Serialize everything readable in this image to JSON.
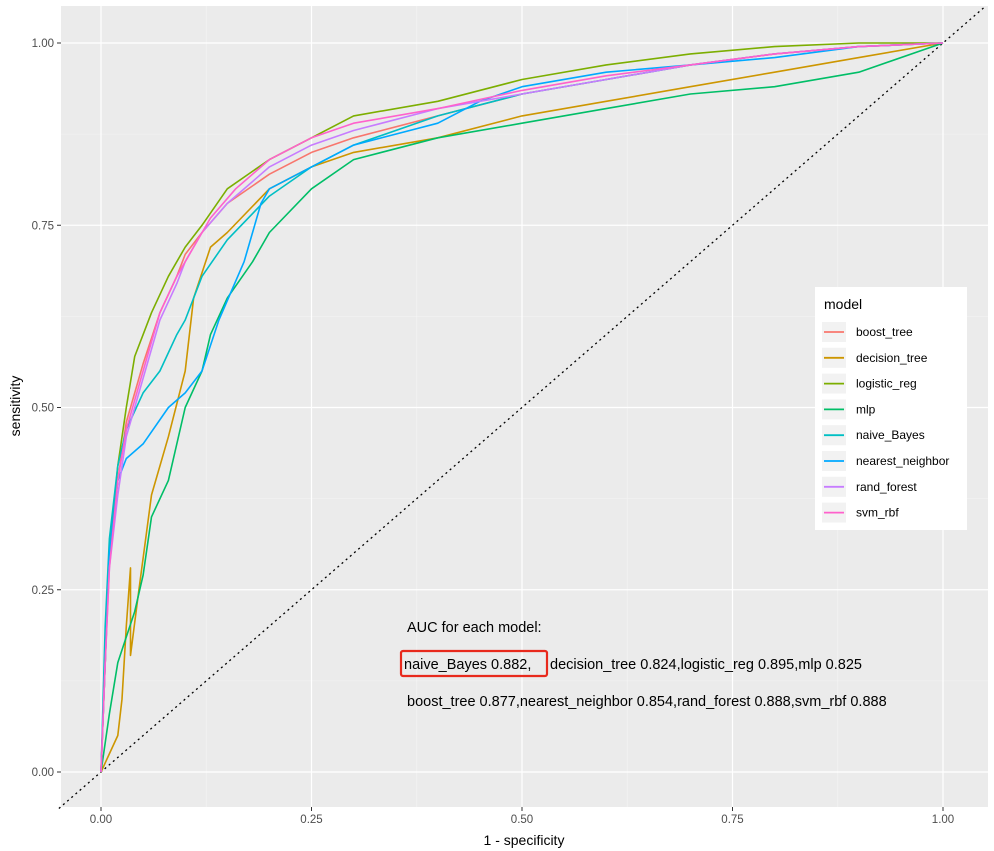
{
  "chart_data": {
    "type": "line",
    "xlabel": "1 - specificity",
    "ylabel": "sensitivity",
    "xlim": [
      -0.05,
      1.05
    ],
    "ylim": [
      -0.05,
      1.05
    ],
    "x_ticks": [
      "0.00",
      "0.25",
      "0.50",
      "0.75",
      "1.00"
    ],
    "y_ticks": [
      "0.00",
      "0.25",
      "0.50",
      "0.75",
      "1.00"
    ],
    "grid": true,
    "reference_line": {
      "from": [
        0,
        0
      ],
      "to": [
        1,
        1
      ],
      "style": "dotted"
    },
    "legend": {
      "title": "model",
      "placement": "right"
    },
    "series": [
      {
        "name": "boost_tree",
        "color": "#F8766D",
        "points": [
          [
            0,
            0
          ],
          [
            0.005,
            0.15
          ],
          [
            0.01,
            0.3
          ],
          [
            0.02,
            0.4
          ],
          [
            0.03,
            0.48
          ],
          [
            0.05,
            0.56
          ],
          [
            0.07,
            0.63
          ],
          [
            0.09,
            0.68
          ],
          [
            0.1,
            0.71
          ],
          [
            0.12,
            0.74
          ],
          [
            0.15,
            0.78
          ],
          [
            0.2,
            0.82
          ],
          [
            0.25,
            0.85
          ],
          [
            0.3,
            0.87
          ],
          [
            0.4,
            0.9
          ],
          [
            0.5,
            0.93
          ],
          [
            0.6,
            0.95
          ],
          [
            0.7,
            0.97
          ],
          [
            0.8,
            0.985
          ],
          [
            0.9,
            0.995
          ],
          [
            1,
            1
          ]
        ]
      },
      {
        "name": "decision_tree",
        "color": "#CD9600",
        "points": [
          [
            0,
            0
          ],
          [
            0.02,
            0.05
          ],
          [
            0.025,
            0.1
          ],
          [
            0.03,
            0.2
          ],
          [
            0.035,
            0.28
          ],
          [
            0.035,
            0.16
          ],
          [
            0.045,
            0.25
          ],
          [
            0.06,
            0.38
          ],
          [
            0.08,
            0.46
          ],
          [
            0.1,
            0.55
          ],
          [
            0.11,
            0.65
          ],
          [
            0.13,
            0.72
          ],
          [
            0.15,
            0.74
          ],
          [
            0.2,
            0.8
          ],
          [
            0.25,
            0.83
          ],
          [
            0.3,
            0.85
          ],
          [
            0.4,
            0.87
          ],
          [
            0.5,
            0.9
          ],
          [
            0.6,
            0.92
          ],
          [
            0.7,
            0.94
          ],
          [
            0.8,
            0.96
          ],
          [
            0.9,
            0.98
          ],
          [
            1,
            1
          ]
        ]
      },
      {
        "name": "logistic_reg",
        "color": "#7CAE00",
        "points": [
          [
            0,
            0
          ],
          [
            0.005,
            0.15
          ],
          [
            0.01,
            0.3
          ],
          [
            0.02,
            0.42
          ],
          [
            0.03,
            0.5
          ],
          [
            0.04,
            0.57
          ],
          [
            0.06,
            0.63
          ],
          [
            0.08,
            0.68
          ],
          [
            0.1,
            0.72
          ],
          [
            0.12,
            0.75
          ],
          [
            0.15,
            0.8
          ],
          [
            0.2,
            0.84
          ],
          [
            0.25,
            0.87
          ],
          [
            0.3,
            0.9
          ],
          [
            0.4,
            0.92
          ],
          [
            0.5,
            0.95
          ],
          [
            0.6,
            0.97
          ],
          [
            0.7,
            0.985
          ],
          [
            0.8,
            0.995
          ],
          [
            0.9,
            1
          ],
          [
            1,
            1
          ]
        ]
      },
      {
        "name": "mlp",
        "color": "#00BE67",
        "points": [
          [
            0,
            0
          ],
          [
            0.01,
            0.08
          ],
          [
            0.02,
            0.15
          ],
          [
            0.04,
            0.22
          ],
          [
            0.05,
            0.27
          ],
          [
            0.06,
            0.35
          ],
          [
            0.08,
            0.4
          ],
          [
            0.1,
            0.5
          ],
          [
            0.12,
            0.55
          ],
          [
            0.13,
            0.6
          ],
          [
            0.15,
            0.65
          ],
          [
            0.18,
            0.7
          ],
          [
            0.2,
            0.74
          ],
          [
            0.25,
            0.8
          ],
          [
            0.3,
            0.84
          ],
          [
            0.4,
            0.87
          ],
          [
            0.5,
            0.89
          ],
          [
            0.6,
            0.91
          ],
          [
            0.7,
            0.93
          ],
          [
            0.8,
            0.94
          ],
          [
            0.9,
            0.96
          ],
          [
            1,
            1
          ]
        ]
      },
      {
        "name": "naive_Bayes",
        "color": "#00BFC4",
        "points": [
          [
            0,
            0
          ],
          [
            0.005,
            0.2
          ],
          [
            0.01,
            0.32
          ],
          [
            0.02,
            0.42
          ],
          [
            0.03,
            0.47
          ],
          [
            0.05,
            0.52
          ],
          [
            0.07,
            0.55
          ],
          [
            0.09,
            0.6
          ],
          [
            0.1,
            0.62
          ],
          [
            0.12,
            0.68
          ],
          [
            0.15,
            0.73
          ],
          [
            0.2,
            0.79
          ],
          [
            0.25,
            0.83
          ],
          [
            0.3,
            0.86
          ],
          [
            0.4,
            0.9
          ],
          [
            0.5,
            0.93
          ],
          [
            0.6,
            0.95
          ],
          [
            0.7,
            0.97
          ],
          [
            0.8,
            0.985
          ],
          [
            0.9,
            0.995
          ],
          [
            1,
            1
          ]
        ]
      },
      {
        "name": "nearest_neighbor",
        "color": "#00A9FF",
        "points": [
          [
            0,
            0
          ],
          [
            0.005,
            0.15
          ],
          [
            0.01,
            0.3
          ],
          [
            0.02,
            0.4
          ],
          [
            0.03,
            0.43
          ],
          [
            0.05,
            0.45
          ],
          [
            0.08,
            0.5
          ],
          [
            0.1,
            0.52
          ],
          [
            0.12,
            0.55
          ],
          [
            0.14,
            0.62
          ],
          [
            0.17,
            0.7
          ],
          [
            0.19,
            0.78
          ],
          [
            0.2,
            0.8
          ],
          [
            0.25,
            0.83
          ],
          [
            0.3,
            0.86
          ],
          [
            0.4,
            0.89
          ],
          [
            0.45,
            0.92
          ],
          [
            0.5,
            0.94
          ],
          [
            0.6,
            0.96
          ],
          [
            0.7,
            0.97
          ],
          [
            0.8,
            0.98
          ],
          [
            0.9,
            0.995
          ],
          [
            1,
            1
          ]
        ]
      },
      {
        "name": "rand_forest",
        "color": "#C77CFF",
        "points": [
          [
            0,
            0
          ],
          [
            0.005,
            0.15
          ],
          [
            0.01,
            0.28
          ],
          [
            0.02,
            0.38
          ],
          [
            0.03,
            0.46
          ],
          [
            0.05,
            0.54
          ],
          [
            0.07,
            0.62
          ],
          [
            0.09,
            0.67
          ],
          [
            0.1,
            0.7
          ],
          [
            0.12,
            0.74
          ],
          [
            0.15,
            0.78
          ],
          [
            0.2,
            0.83
          ],
          [
            0.25,
            0.86
          ],
          [
            0.3,
            0.88
          ],
          [
            0.4,
            0.91
          ],
          [
            0.5,
            0.93
          ],
          [
            0.6,
            0.95
          ],
          [
            0.7,
            0.97
          ],
          [
            0.8,
            0.985
          ],
          [
            0.9,
            0.995
          ],
          [
            1,
            1
          ]
        ]
      },
      {
        "name": "svm_rbf",
        "color": "#FF61CC",
        "points": [
          [
            0,
            0
          ],
          [
            0.005,
            0.15
          ],
          [
            0.01,
            0.28
          ],
          [
            0.02,
            0.4
          ],
          [
            0.03,
            0.47
          ],
          [
            0.05,
            0.55
          ],
          [
            0.07,
            0.63
          ],
          [
            0.09,
            0.68
          ],
          [
            0.11,
            0.72
          ],
          [
            0.13,
            0.76
          ],
          [
            0.16,
            0.8
          ],
          [
            0.2,
            0.84
          ],
          [
            0.25,
            0.87
          ],
          [
            0.3,
            0.89
          ],
          [
            0.4,
            0.91
          ],
          [
            0.5,
            0.935
          ],
          [
            0.6,
            0.955
          ],
          [
            0.7,
            0.97
          ],
          [
            0.8,
            0.985
          ],
          [
            0.9,
            0.995
          ],
          [
            1,
            1
          ]
        ]
      }
    ],
    "annotations": {
      "heading": "AUC for each model:",
      "line1_highlight": "naive_Bayes 0.882,",
      "line1_rest": "decision_tree 0.824,logistic_reg 0.895,mlp 0.825",
      "line2": "boost_tree 0.877,nearest_neighbor 0.854,rand_forest 0.888,svm_rbf 0.888",
      "highlight_color": "#e8291c"
    }
  },
  "colors": {
    "panel_background": "#EBEBEB",
    "grid_major": "#FFFFFF",
    "grid_minor": "#F5F5F5"
  }
}
